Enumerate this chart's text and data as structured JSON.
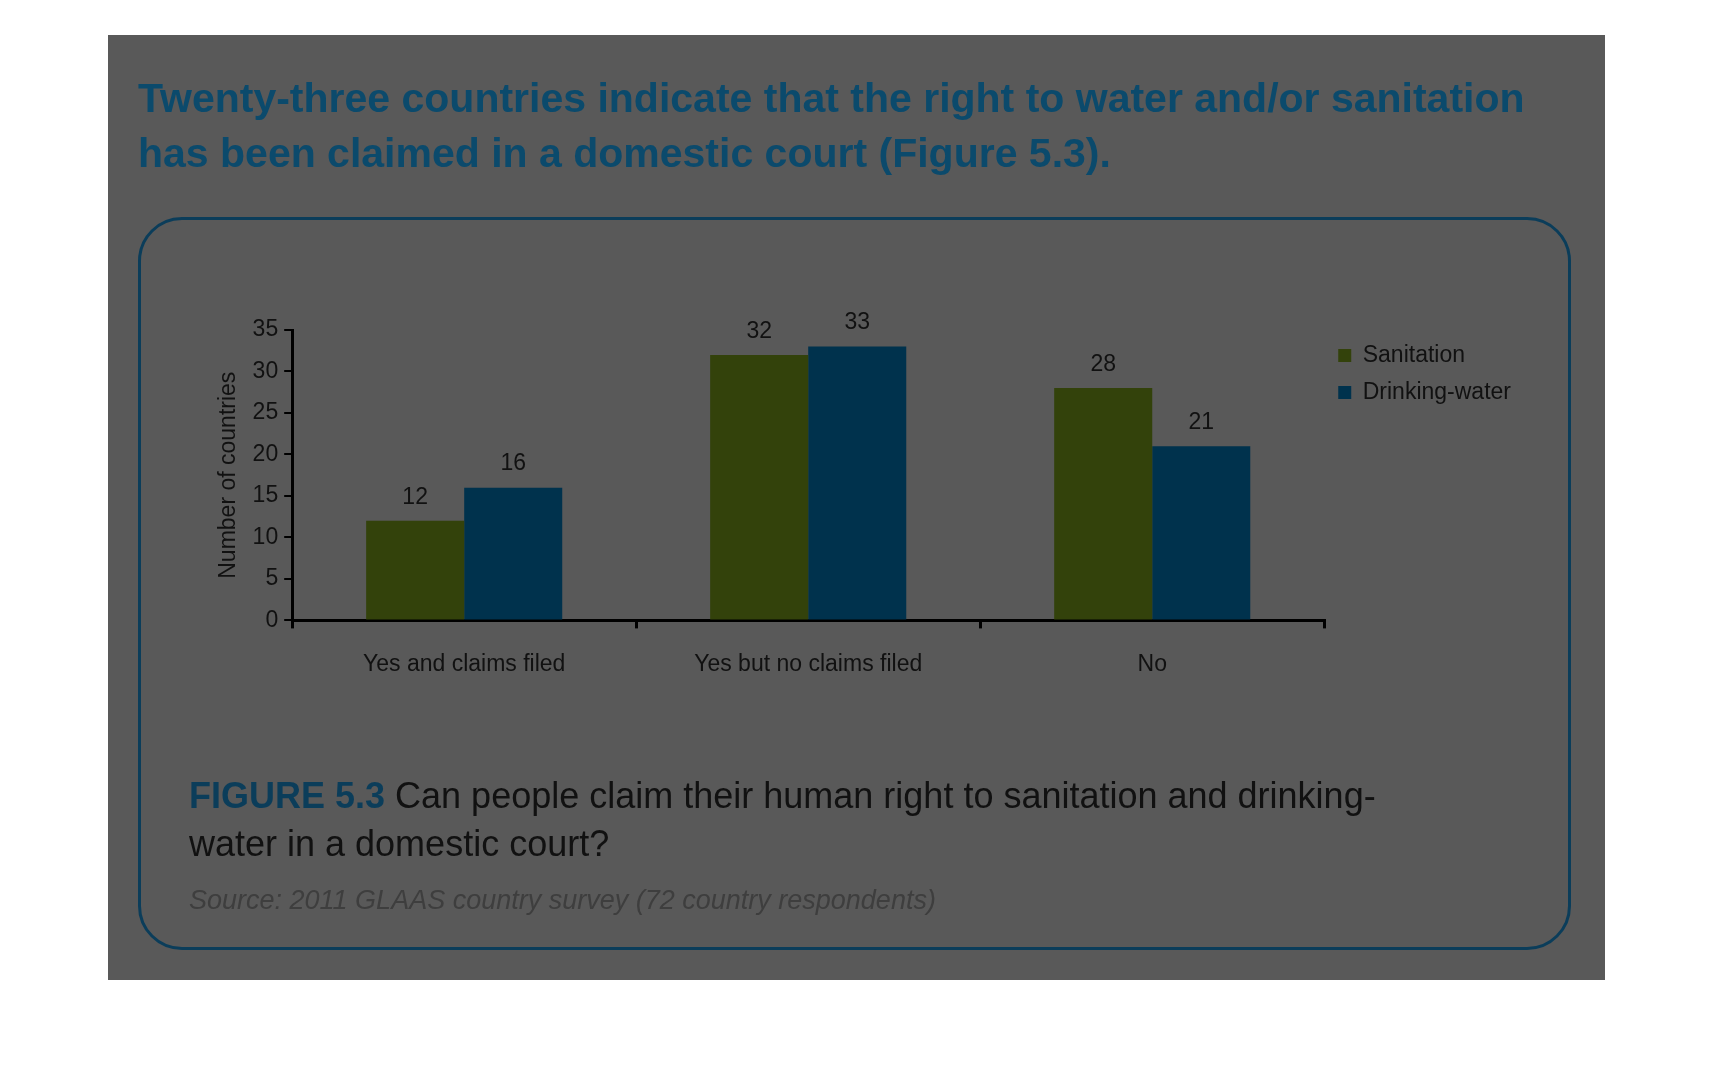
{
  "chart_data": {
    "type": "bar",
    "title": "Twenty-three countries indicate that the right to water and/or sanitation has been claimed in a domestic court (Figure 5.3).",
    "categories": [
      "Yes and claims filed",
      "Yes but no claims filed",
      "No"
    ],
    "series": [
      {
        "name": "Sanitation",
        "color": "#33420b",
        "values": [
          12,
          32,
          28
        ]
      },
      {
        "name": "Drinking-water",
        "color": "#00324d",
        "values": [
          16,
          33,
          21
        ]
      }
    ],
    "ylabel": "Number of countries",
    "ylim": [
      0,
      35
    ],
    "yticks": [
      0,
      5,
      10,
      15,
      20,
      25,
      30,
      35
    ],
    "data_labels": true,
    "legend": "top right",
    "grid": false,
    "annotations": [
      "FIGURE 5.3",
      "Can people claim their human right to sanitation and drinking-water in a domestic court?",
      "Source: 2011 GLAAS country survey (72 country respondents)"
    ]
  }
}
